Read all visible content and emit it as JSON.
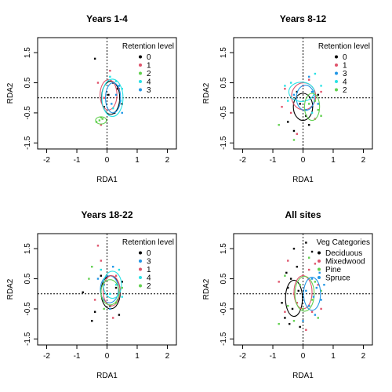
{
  "chart_data": [
    {
      "type": "scatter",
      "title": "Years 1-4",
      "xlabel": "RDA1",
      "ylabel": "RDA2",
      "xlim": [
        -2.3,
        2.3
      ],
      "ylim": [
        -1.7,
        2.0
      ],
      "xticks": [
        -2,
        -1,
        0,
        1,
        2
      ],
      "yticks": [
        -1.5,
        -0.5,
        0.5,
        1.5
      ],
      "ytick_labels": [
        "-1.5",
        "-0.5",
        "0.5",
        "1.5"
      ],
      "legend": {
        "title": "Retention level",
        "position": "top-right",
        "entries": [
          {
            "label": "0",
            "color": "#000000"
          },
          {
            "label": "1",
            "color": "#df536b"
          },
          {
            "label": "2",
            "color": "#61d04f"
          },
          {
            "label": "4",
            "color": "#28e2e5"
          },
          {
            "label": "3",
            "color": "#2297e6"
          }
        ]
      },
      "reference_lines": {
        "x": 0,
        "y": 0,
        "style": "dotted"
      },
      "series": [
        {
          "name": "0",
          "color": "#000000",
          "points": [
            [
              -0.4,
              1.3
            ],
            [
              0.2,
              0.5
            ],
            [
              0.35,
              0.3
            ],
            [
              -0.1,
              -0.3
            ],
            [
              0.25,
              -0.5
            ],
            [
              0.5,
              -0.2
            ],
            [
              0.05,
              0.1
            ]
          ],
          "ellipse": {
            "cx": 0.12,
            "cy": 0.0,
            "rx": 0.3,
            "ry": 0.55
          }
        },
        {
          "name": "1",
          "color": "#df536b",
          "points": [
            [
              -0.3,
              0.5
            ],
            [
              -0.2,
              -0.9
            ],
            [
              0.1,
              0.9
            ],
            [
              0.4,
              0.3
            ],
            [
              -0.1,
              0.0
            ]
          ],
          "ellipse": {
            "cx": 0.05,
            "cy": 0.1,
            "rx": 0.28,
            "ry": 0.5
          }
        },
        {
          "name": "2",
          "color": "#61d04f",
          "points": [
            [
              -0.35,
              -0.8
            ],
            [
              -0.2,
              -0.65
            ],
            [
              -0.15,
              -0.7
            ],
            [
              -0.25,
              -0.75
            ]
          ],
          "ellipse": {
            "cx": -0.2,
            "cy": -0.75,
            "rx": 0.18,
            "ry": 0.12
          }
        },
        {
          "name": "4",
          "color": "#28e2e5",
          "points": [
            [
              0.3,
              0.55
            ],
            [
              0.5,
              0.3
            ],
            [
              0.2,
              -0.35
            ],
            [
              0.45,
              -0.1
            ],
            [
              0.1,
              0.7
            ]
          ],
          "ellipse": {
            "cx": 0.18,
            "cy": 0.0,
            "rx": 0.35,
            "ry": 0.62
          }
        },
        {
          "name": "3",
          "color": "#2297e6",
          "points": [
            [
              0.5,
              -0.5
            ],
            [
              0.3,
              0.1
            ],
            [
              0.15,
              -0.2
            ],
            [
              0.4,
              0.4
            ]
          ],
          "ellipse": {
            "cx": 0.2,
            "cy": 0.0,
            "rx": 0.25,
            "ry": 0.5
          }
        }
      ]
    },
    {
      "type": "scatter",
      "title": "Years 8-12",
      "xlabel": "RDA1",
      "ylabel": "RDA2",
      "xlim": [
        -2.3,
        2.3
      ],
      "ylim": [
        -1.7,
        2.0
      ],
      "xticks": [
        -2,
        -1,
        0,
        1,
        2
      ],
      "yticks": [
        -1.5,
        -0.5,
        0.5,
        1.5
      ],
      "ytick_labels": [
        "-1.5",
        "-0.5",
        "0.5",
        "1.5"
      ],
      "legend": {
        "title": "Retention level",
        "position": "top-right",
        "entries": [
          {
            "label": "0",
            "color": "#000000"
          },
          {
            "label": "1",
            "color": "#df536b"
          },
          {
            "label": "3",
            "color": "#2297e6"
          },
          {
            "label": "4",
            "color": "#28e2e5"
          },
          {
            "label": "2",
            "color": "#61d04f"
          }
        ]
      },
      "reference_lines": {
        "x": 0,
        "y": 0,
        "style": "dotted"
      },
      "series": [
        {
          "name": "0",
          "color": "#000000",
          "points": [
            [
              -0.5,
              -0.8
            ],
            [
              -0.3,
              -1.1
            ],
            [
              0.1,
              -0.6
            ],
            [
              0.3,
              -0.3
            ],
            [
              -0.2,
              0.2
            ],
            [
              0.5,
              0.1
            ],
            [
              -0.1,
              -0.2
            ],
            [
              0.2,
              -0.9
            ]
          ],
          "ellipse": {
            "cx": 0.0,
            "cy": -0.3,
            "rx": 0.32,
            "ry": 0.45
          }
        },
        {
          "name": "1",
          "color": "#df536b",
          "points": [
            [
              -0.6,
              0.3
            ],
            [
              -0.4,
              -0.5
            ],
            [
              0.2,
              0.6
            ],
            [
              0.4,
              -0.7
            ],
            [
              -0.2,
              -1.2
            ],
            [
              0.6,
              0.2
            ],
            [
              0.0,
              0.4
            ],
            [
              -0.7,
              -0.3
            ]
          ],
          "ellipse": {
            "cx": 0.02,
            "cy": 0.05,
            "rx": 0.4,
            "ry": 0.45
          }
        },
        {
          "name": "3",
          "color": "#2297e6",
          "points": [
            [
              0.3,
              0.2
            ],
            [
              0.1,
              -0.4
            ],
            [
              -0.3,
              0.1
            ],
            [
              0.5,
              -0.2
            ],
            [
              0.2,
              0.7
            ]
          ],
          "ellipse": {
            "cx": 0.08,
            "cy": 0.0,
            "rx": 0.3,
            "ry": 0.42
          }
        },
        {
          "name": "4",
          "color": "#28e2e5",
          "points": [
            [
              -0.4,
              0.5
            ],
            [
              0.6,
              0.4
            ],
            [
              0.3,
              -0.5
            ],
            [
              -0.5,
              -0.1
            ],
            [
              0.4,
              0.8
            ],
            [
              -0.6,
              0.4
            ]
          ],
          "ellipse": {
            "cx": -0.05,
            "cy": 0.2,
            "rx": 0.42,
            "ry": 0.32
          }
        },
        {
          "name": "2",
          "color": "#61d04f",
          "points": [
            [
              0.5,
              -0.4
            ],
            [
              0.4,
              -0.1
            ],
            [
              -0.8,
              -0.9
            ],
            [
              -0.3,
              -1.4
            ],
            [
              0.6,
              -0.6
            ],
            [
              0.2,
              -0.2
            ]
          ],
          "ellipse": {
            "cx": 0.3,
            "cy": -0.3,
            "rx": 0.25,
            "ry": 0.45
          }
        }
      ]
    },
    {
      "type": "scatter",
      "title": "Years 18-22",
      "xlabel": "RDA1",
      "ylabel": "RDA2",
      "xlim": [
        -2.3,
        2.3
      ],
      "ylim": [
        -1.7,
        2.0
      ],
      "xticks": [
        -2,
        -1,
        0,
        1,
        2
      ],
      "yticks": [
        -1.5,
        -0.5,
        0.5,
        1.5
      ],
      "ytick_labels": [
        "-1.5",
        "-0.5",
        "0.5",
        "1.5"
      ],
      "legend": {
        "title": "Retention level",
        "position": "top-right",
        "entries": [
          {
            "label": "0",
            "color": "#000000"
          },
          {
            "label": "3",
            "color": "#2297e6"
          },
          {
            "label": "1",
            "color": "#df536b"
          },
          {
            "label": "4",
            "color": "#28e2e5"
          },
          {
            "label": "2",
            "color": "#61d04f"
          }
        ]
      },
      "reference_lines": {
        "x": 0,
        "y": 0,
        "style": "dotted"
      },
      "series": [
        {
          "name": "0",
          "color": "#000000",
          "points": [
            [
              -0.8,
              0.05
            ],
            [
              -0.5,
              -0.9
            ],
            [
              0.1,
              -0.4
            ],
            [
              0.3,
              0.2
            ],
            [
              -0.2,
              0.6
            ],
            [
              0.4,
              -0.7
            ],
            [
              0.5,
              0.4
            ],
            [
              -0.4,
              -0.6
            ]
          ],
          "ellipse": {
            "cx": 0.12,
            "cy": 0.05,
            "rx": 0.32,
            "ry": 0.55
          }
        },
        {
          "name": "3",
          "color": "#2297e6",
          "points": [
            [
              0.2,
              0.9
            ],
            [
              -0.1,
              0.3
            ],
            [
              0.35,
              -0.2
            ],
            [
              0.1,
              -0.5
            ],
            [
              -0.3,
              0.5
            ]
          ],
          "ellipse": {
            "cx": 0.08,
            "cy": 0.15,
            "rx": 0.3,
            "ry": 0.45
          }
        },
        {
          "name": "1",
          "color": "#df536b",
          "points": [
            [
              -0.3,
              1.6
            ],
            [
              -0.2,
              1.1
            ],
            [
              0.3,
              0.6
            ],
            [
              -0.4,
              -0.2
            ],
            [
              0.2,
              -0.8
            ]
          ],
          "ellipse": {
            "cx": 0.15,
            "cy": 0.1,
            "rx": 0.28,
            "ry": 0.5
          }
        },
        {
          "name": "4",
          "color": "#28e2e5",
          "points": [
            [
              0.4,
              0.8
            ],
            [
              0.3,
              0.3
            ],
            [
              0.1,
              0.0
            ],
            [
              0.5,
              -0.1
            ],
            [
              -0.2,
              0.8
            ]
          ],
          "ellipse": {
            "cx": 0.18,
            "cy": 0.3,
            "rx": 0.3,
            "ry": 0.45
          }
        },
        {
          "name": "2",
          "color": "#61d04f",
          "points": [
            [
              -0.6,
              0.5
            ],
            [
              -0.5,
              0.9
            ],
            [
              0.3,
              -0.3
            ],
            [
              0.5,
              0.2
            ],
            [
              -0.1,
              -0.5
            ]
          ],
          "ellipse": {
            "cx": 0.1,
            "cy": 0.05,
            "rx": 0.3,
            "ry": 0.42
          }
        }
      ]
    },
    {
      "type": "scatter",
      "title": "All sites",
      "xlabel": "RDA1",
      "ylabel": "RDA2",
      "xlim": [
        -2.3,
        2.3
      ],
      "ylim": [
        -1.7,
        2.0
      ],
      "xticks": [
        -2,
        -1,
        0,
        1,
        2
      ],
      "yticks": [
        -1.5,
        -0.5,
        0.5,
        1.5
      ],
      "ytick_labels": [
        "-1.5",
        "-0.5",
        "0.5",
        "1.5"
      ],
      "legend": {
        "title": "Veg Categories",
        "position": "top-right",
        "entries": [
          {
            "label": "Deciduous",
            "color": "#000000"
          },
          {
            "label": "Mixedwood",
            "color": "#df536b"
          },
          {
            "label": "Pine",
            "color": "#61d04f"
          },
          {
            "label": "Spruce",
            "color": "#2297e6"
          }
        ]
      },
      "reference_lines": {
        "x": 0,
        "y": 0,
        "style": "dotted"
      },
      "series": [
        {
          "name": "Deciduous",
          "color": "#000000",
          "points": [
            [
              -0.3,
              1.5
            ],
            [
              -0.6,
              -0.8
            ],
            [
              -0.4,
              0.5
            ],
            [
              -0.1,
              -1.1
            ],
            [
              -0.5,
              0.2
            ],
            [
              0.2,
              -0.4
            ],
            [
              -0.2,
              0.9
            ],
            [
              -0.7,
              -0.3
            ],
            [
              0.1,
              1.7
            ],
            [
              -0.35,
              -0.5
            ],
            [
              -0.15,
              0.1
            ],
            [
              -0.55,
              0.7
            ],
            [
              0.3,
              1.4
            ],
            [
              -0.45,
              -1.0
            ]
          ],
          "ellipse": {
            "cx": -0.3,
            "cy": -0.15,
            "rx": 0.28,
            "ry": 0.6
          }
        },
        {
          "name": "Mixedwood",
          "color": "#df536b",
          "points": [
            [
              0.2,
              0.8
            ],
            [
              -0.5,
              1.1
            ],
            [
              0.3,
              -0.6
            ],
            [
              -0.2,
              -0.3
            ],
            [
              0.5,
              0.3
            ],
            [
              -0.8,
              0.4
            ],
            [
              0.1,
              -1.2
            ],
            [
              0.4,
              1.0
            ],
            [
              -0.3,
              0.0
            ],
            [
              0.6,
              -0.5
            ],
            [
              0.0,
              0.6
            ],
            [
              -0.6,
              -0.6
            ]
          ],
          "ellipse": {
            "cx": 0.0,
            "cy": 0.05,
            "rx": 0.3,
            "ry": 0.55
          }
        },
        {
          "name": "Pine",
          "color": "#61d04f",
          "points": [
            [
              -0.6,
              0.6
            ],
            [
              0.4,
              0.4
            ],
            [
              -0.3,
              -0.9
            ],
            [
              0.3,
              -0.2
            ],
            [
              -0.1,
              0.3
            ],
            [
              0.6,
              0.1
            ],
            [
              -0.5,
              -0.4
            ],
            [
              0.2,
              1.2
            ],
            [
              0.5,
              -0.8
            ],
            [
              -0.8,
              -1.0
            ],
            [
              0.0,
              -0.5
            ]
          ],
          "ellipse": {
            "cx": 0.05,
            "cy": 0.0,
            "rx": 0.32,
            "ry": 0.58
          }
        },
        {
          "name": "Spruce",
          "color": "#2297e6",
          "points": [
            [
              0.3,
              0.5
            ],
            [
              0.6,
              -0.2
            ],
            [
              0.1,
              0.1
            ],
            [
              0.4,
              -0.7
            ],
            [
              0.55,
              0.7
            ],
            [
              0.2,
              -0.4
            ],
            [
              0.45,
              0.2
            ],
            [
              0.0,
              -0.9
            ],
            [
              0.7,
              0.3
            ],
            [
              0.35,
              -0.1
            ]
          ],
          "ellipse": {
            "cx": 0.3,
            "cy": 0.0,
            "rx": 0.28,
            "ry": 0.55
          }
        }
      ]
    }
  ]
}
